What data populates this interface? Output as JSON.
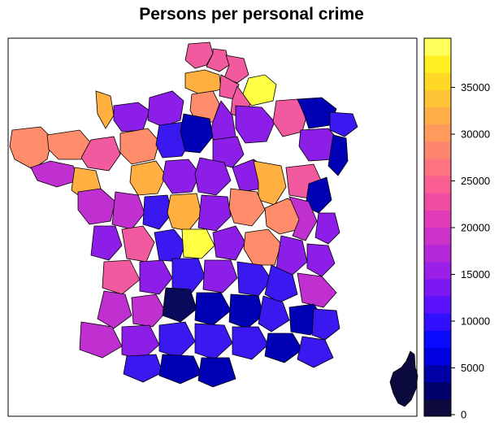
{
  "title": "Persons per personal crime",
  "legend": {
    "position": "right",
    "ticks": [
      0,
      5000,
      10000,
      15000,
      20000,
      25000,
      30000,
      35000
    ],
    "tick_labels": [
      "0",
      "5000",
      "10000",
      "15000",
      "20000",
      "25000",
      "30000",
      "35000"
    ],
    "range": [
      0,
      40000
    ],
    "colors": [
      "#0d0b3d",
      "#00006b",
      "#0000a6",
      "#0000e0",
      "#0a0aff",
      "#3010ff",
      "#5a12ff",
      "#7c18f4",
      "#9a20e8",
      "#b428d8",
      "#cc32c8",
      "#e03cb8",
      "#f04ca4",
      "#fb5f92",
      "#ff7280",
      "#ff866e",
      "#ff9a5c",
      "#ffae4a",
      "#ffc338",
      "#ffd826",
      "#ffee20",
      "#ffff5a"
    ]
  },
  "map": {
    "region_colors": {
      "very_low": "#0a0a5c",
      "low": "#0000b4",
      "mid_low": "#3a18f0",
      "mid": "#8c1ee8",
      "mid_high": "#c030d0",
      "high": "#f25aa0",
      "higher": "#ff8c6a",
      "very_high": "#ffb040",
      "max": "#ffff44",
      "border": "#000000"
    }
  }
}
